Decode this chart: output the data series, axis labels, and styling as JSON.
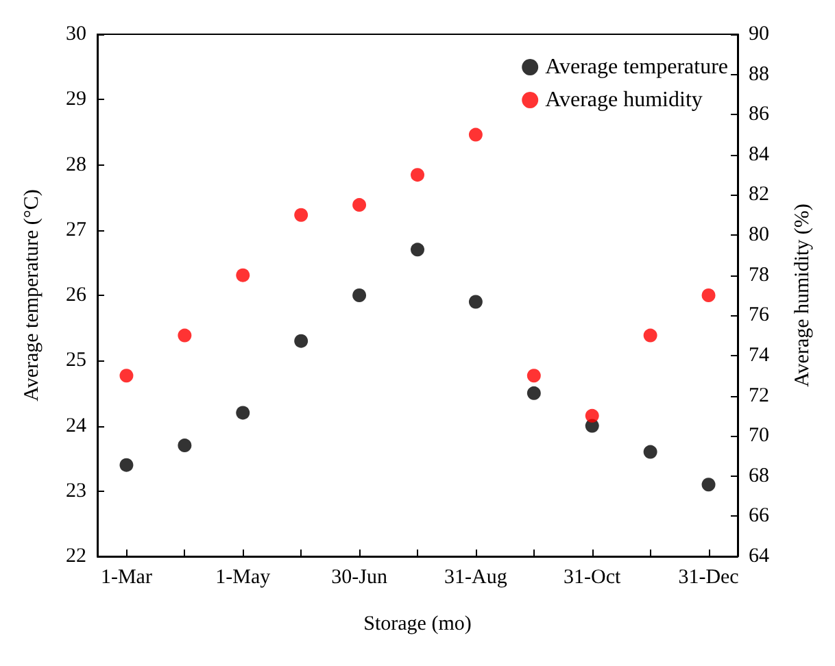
{
  "chart_data": {
    "type": "scatter",
    "xlabel": "Storage (mo)",
    "ylabel": "Average temperature (°C)",
    "y2label": "Average humidity (%)",
    "categories": [
      "1-Mar",
      null,
      "1-May",
      null,
      "30-Jun",
      null,
      "31-Aug",
      null,
      "31-Oct",
      null,
      "31-Dec"
    ],
    "series": [
      {
        "name": "Average temperature",
        "color": "#000000",
        "values": [
          23.4,
          23.7,
          24.2,
          25.3,
          26.0,
          26.7,
          25.9,
          24.5,
          24.0,
          23.6,
          23.1
        ]
      },
      {
        "name": "Average humidity",
        "color": "#ff0000",
        "axis": "y2",
        "values": [
          73,
          75,
          78,
          81,
          81.5,
          83,
          85,
          73,
          71,
          75,
          77
        ]
      }
    ],
    "ylim": [
      22,
      30
    ],
    "yticks": [
      22,
      23,
      24,
      25,
      26,
      27,
      28,
      29,
      30
    ],
    "y2lim": [
      64,
      90
    ],
    "y2ticks": [
      64,
      66,
      68,
      70,
      72,
      74,
      76,
      78,
      80,
      82,
      84,
      86,
      88,
      90
    ],
    "legend": "top right",
    "grid": false,
    "marker": "circle"
  }
}
